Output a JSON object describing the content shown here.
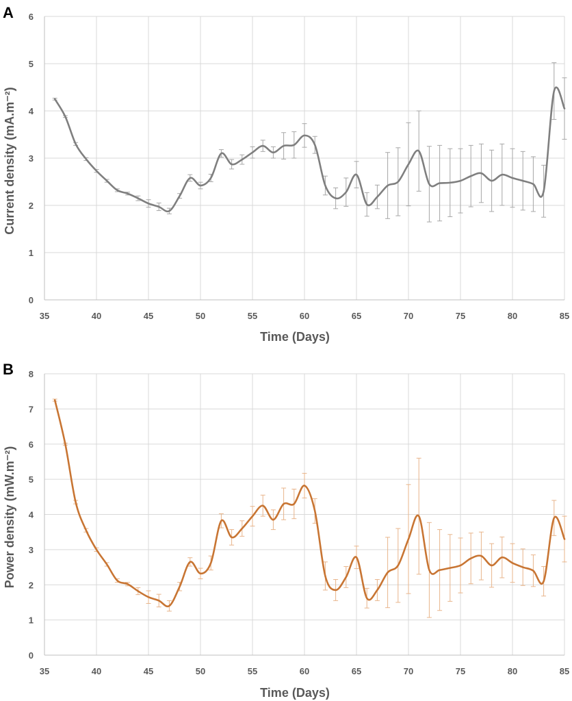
{
  "chart_data": [
    {
      "type": "line",
      "panel": "A",
      "title": "",
      "xlabel": "Time (Days)",
      "ylabel": "Current density (mA.m⁻²)",
      "xlim": [
        35,
        85
      ],
      "ylim": [
        0,
        6
      ],
      "xticks": [
        35,
        40,
        45,
        50,
        55,
        60,
        65,
        70,
        75,
        80,
        85
      ],
      "yticks": [
        0,
        1,
        2,
        3,
        4,
        5,
        6
      ],
      "grid": true,
      "color": "#7f7f7f",
      "series": [
        {
          "name": "Current density",
          "x": [
            36,
            37,
            38,
            39,
            40,
            41,
            42,
            43,
            44,
            45,
            46,
            47,
            48,
            49,
            50,
            51,
            52,
            53,
            54,
            55,
            56,
            57,
            58,
            59,
            60,
            61,
            62,
            63,
            64,
            65,
            66,
            67,
            68,
            69,
            70,
            71,
            72,
            73,
            74,
            75,
            76,
            77,
            78,
            79,
            80,
            81,
            82,
            83,
            84,
            85
          ],
          "values": [
            4.25,
            3.88,
            3.3,
            2.98,
            2.73,
            2.52,
            2.32,
            2.25,
            2.15,
            2.04,
            1.97,
            1.88,
            2.2,
            2.58,
            2.42,
            2.58,
            3.1,
            2.87,
            2.97,
            3.12,
            3.26,
            3.12,
            3.26,
            3.28,
            3.48,
            3.28,
            2.42,
            2.15,
            2.28,
            2.65,
            2.02,
            2.18,
            2.42,
            2.5,
            2.87,
            3.15,
            2.45,
            2.47,
            2.48,
            2.52,
            2.62,
            2.68,
            2.52,
            2.65,
            2.58,
            2.52,
            2.45,
            2.3,
            4.42,
            4.05
          ],
          "errors": [
            0.02,
            0.02,
            0.03,
            0.03,
            0.03,
            0.03,
            0.03,
            0.03,
            0.05,
            0.08,
            0.08,
            0.06,
            0.05,
            0.07,
            0.07,
            0.08,
            0.08,
            0.1,
            0.1,
            0.12,
            0.12,
            0.12,
            0.28,
            0.28,
            0.25,
            0.18,
            0.2,
            0.22,
            0.3,
            0.28,
            0.25,
            0.25,
            0.7,
            0.72,
            0.88,
            0.85,
            0.8,
            0.8,
            0.72,
            0.68,
            0.65,
            0.62,
            0.65,
            0.65,
            0.62,
            0.62,
            0.58,
            0.55,
            0.6,
            0.65
          ]
        }
      ]
    },
    {
      "type": "line",
      "panel": "B",
      "title": "",
      "xlabel": "Time (Days)",
      "ylabel": "Power density (mW.m⁻²)",
      "xlim": [
        35,
        85
      ],
      "ylim": [
        0,
        8
      ],
      "xticks": [
        35,
        40,
        45,
        50,
        55,
        60,
        65,
        70,
        75,
        80,
        85
      ],
      "yticks": [
        0,
        1,
        2,
        3,
        4,
        5,
        6,
        7,
        8
      ],
      "grid": true,
      "color": "#c87533",
      "series": [
        {
          "name": "Power density",
          "x": [
            36,
            37,
            38,
            39,
            40,
            41,
            42,
            43,
            44,
            45,
            46,
            47,
            48,
            49,
            50,
            51,
            52,
            53,
            54,
            55,
            56,
            57,
            58,
            59,
            60,
            61,
            62,
            63,
            64,
            65,
            66,
            67,
            68,
            69,
            70,
            71,
            72,
            73,
            74,
            75,
            76,
            77,
            78,
            79,
            80,
            81,
            82,
            83,
            84,
            85
          ],
          "values": [
            7.25,
            6.0,
            4.35,
            3.55,
            3.0,
            2.58,
            2.12,
            2.02,
            1.82,
            1.65,
            1.55,
            1.4,
            1.95,
            2.65,
            2.32,
            2.62,
            3.82,
            3.35,
            3.6,
            3.95,
            4.25,
            3.85,
            4.3,
            4.3,
            4.82,
            4.1,
            2.25,
            1.85,
            2.22,
            2.78,
            1.62,
            1.85,
            2.35,
            2.55,
            3.3,
            3.95,
            2.42,
            2.42,
            2.48,
            2.55,
            2.75,
            2.82,
            2.55,
            2.78,
            2.62,
            2.5,
            2.4,
            2.1,
            3.9,
            3.3
          ],
          "errors": [
            0.03,
            0.03,
            0.05,
            0.05,
            0.05,
            0.05,
            0.05,
            0.05,
            0.1,
            0.18,
            0.18,
            0.15,
            0.12,
            0.12,
            0.15,
            0.2,
            0.2,
            0.22,
            0.22,
            0.28,
            0.3,
            0.28,
            0.45,
            0.42,
            0.35,
            0.35,
            0.4,
            0.3,
            0.3,
            0.32,
            0.28,
            0.3,
            1.0,
            1.05,
            1.55,
            1.65,
            1.35,
            1.15,
            0.95,
            0.78,
            0.72,
            0.68,
            0.62,
            0.58,
            0.55,
            0.52,
            0.45,
            0.42,
            0.5,
            0.65
          ]
        }
      ]
    }
  ]
}
